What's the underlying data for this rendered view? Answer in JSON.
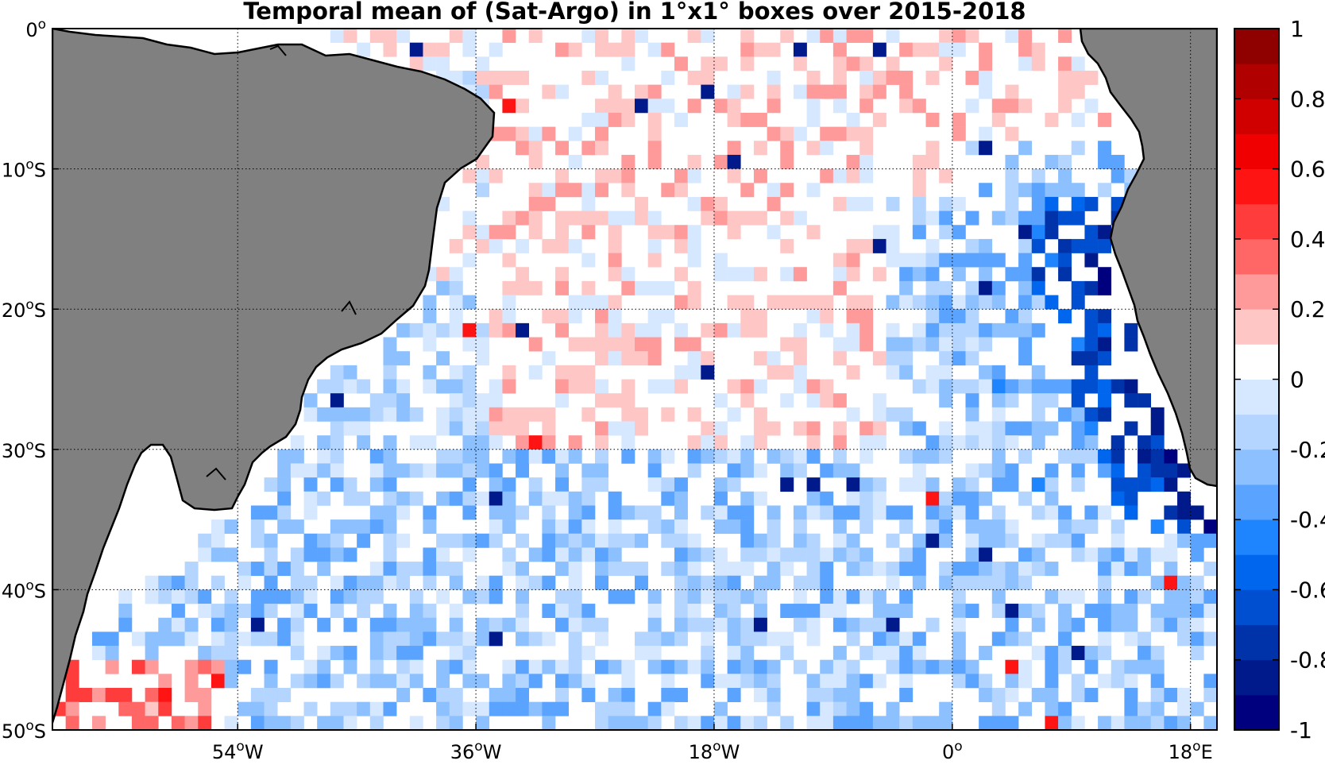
{
  "chart_data": {
    "type": "heatmap",
    "title": "Temporal mean of (Sat-Argo) in 1°x1° boxes over 2015-2018",
    "x_ticks": [
      {
        "value": -54,
        "label": "54",
        "sup": "o",
        "suffix": "W"
      },
      {
        "value": -36,
        "label": "36",
        "sup": "o",
        "suffix": "W"
      },
      {
        "value": -18,
        "label": "18",
        "sup": "o",
        "suffix": "W"
      },
      {
        "value": 0,
        "label": "0",
        "sup": "o",
        "suffix": ""
      },
      {
        "value": 18,
        "label": "18",
        "sup": "o",
        "suffix": "E"
      }
    ],
    "y_ticks": [
      {
        "value": 0,
        "label": "0",
        "sup": "o",
        "suffix": ""
      },
      {
        "value": -10,
        "label": "10",
        "sup": "o",
        "suffix": "S"
      },
      {
        "value": -20,
        "label": "20",
        "sup": "o",
        "suffix": "S"
      },
      {
        "value": -30,
        "label": "30",
        "sup": "o",
        "suffix": "S"
      },
      {
        "value": -40,
        "label": "40",
        "sup": "o",
        "suffix": "S"
      },
      {
        "value": -50,
        "label": "50",
        "sup": "o",
        "suffix": "S"
      }
    ],
    "xlim": [
      -68,
      20
    ],
    "ylim": [
      -50,
      0
    ],
    "grid": "dotted at labeled ticks",
    "colorbar": {
      "range": [
        -1,
        1
      ],
      "tick_labels": [
        "1",
        "0.8",
        "0.6",
        "0.4",
        "0.2",
        "0",
        "-0.2",
        "-0.4",
        "-0.6",
        "-0.8",
        "-1"
      ],
      "colors": [
        "#00007f",
        "#001a8c",
        "#0033aa",
        "#004fd0",
        "#0066ee",
        "#1f85ff",
        "#5aa3ff",
        "#8cc0ff",
        "#b4d5ff",
        "#d6e8ff",
        "#ffffff",
        "#ffc6c6",
        "#ff9a9a",
        "#ff6666",
        "#ff3c3c",
        "#ff1414",
        "#f00000",
        "#d00000",
        "#b00000",
        "#8f0000"
      ]
    },
    "colors": {
      "land": "#808080",
      "ocean": "#ffffff",
      "coast": "#000000"
    },
    "cell_values": {
      "note_on_content": "1x1 degree box values (Sat-Argo), temperature difference, approximately read from the map",
      "pattern": "west-south region mostly negative -0.1 to -0.3; eastern boundary near Africa strongly negative -0.4 to -0.9; equatorial band and central basin mostly positive +0.1 to +0.2; south-west corner near 47-49S 60-54W strongly positive +0.4 to +0.6"
    }
  }
}
